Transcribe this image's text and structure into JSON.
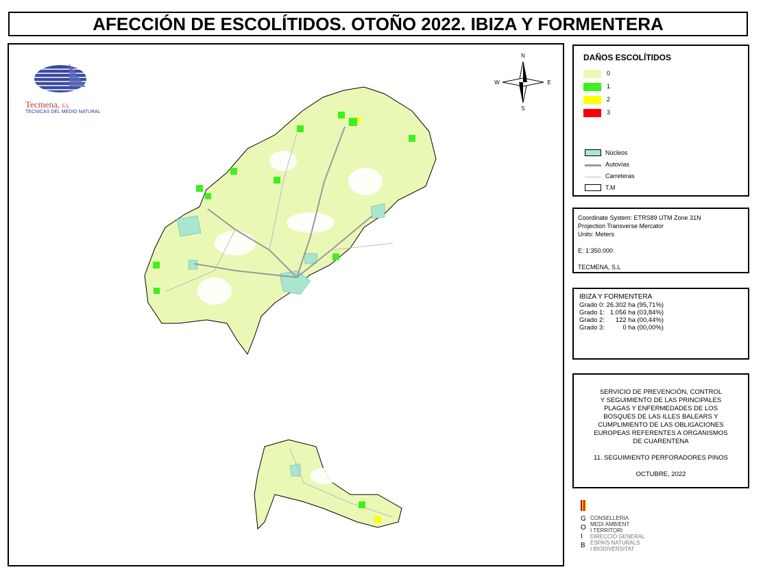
{
  "title": "AFECCIÓN DE ESCOLÍTIDOS. OTOÑO 2022. IBIZA Y FORMENTERA",
  "logo": {
    "name": "Tecmena,",
    "suffix": "S.L",
    "subtitle": "TECNICAS DEL MEDIO NATURAL"
  },
  "compass": {
    "n": "N",
    "s": "S",
    "e": "E",
    "w": "W"
  },
  "legend": {
    "title": "DAÑOS ESCOLÍTIDOS",
    "classes": [
      {
        "label": "0",
        "color": "#eaf8b6"
      },
      {
        "label": "1",
        "color": "#3ef01c"
      },
      {
        "label": "2",
        "color": "#ffff00"
      },
      {
        "label": "3",
        "color": "#ff0000"
      }
    ],
    "layers": [
      {
        "label": "Núcleos"
      },
      {
        "label": "Autovías"
      },
      {
        "label": "Carreteras"
      },
      {
        "label": "T.M"
      }
    ]
  },
  "info": {
    "lines": [
      "Coordinate System: ETRS89 UTM Zone 31N",
      "Projection Transverse Mercator",
      "Units: Meters",
      "E: 1:350.000",
      "TECMENA, S.L"
    ]
  },
  "stats": {
    "title": "IBIZA Y FORMENTERA",
    "rows": [
      "Grado 0: 26.302 ha (95,71%)",
      "Grado 1:   1.056 ha (03,84%)",
      "Grado 2:      122 ha (00,44%)",
      "Grado 3:          0 ha (00,00%)"
    ]
  },
  "project": {
    "lines": [
      "SERVICIO DE PREVENCIÓN, CONTROL",
      "Y SEGUIMIENTO DE LAS PRINCIPALES",
      "PLAGAS Y ENFERMEDADES DE LOS",
      "BOSQUES DE LAS ILLES BALEARS Y",
      "CUMPLIMIENTO DE LAS OBLIGACIONES",
      "EUROPEAS REFERENTES A ORGANISMOS",
      "DE CUARENTENA",
      "11. SEGUIMIENTO PERFORADORES PINOS",
      "OCTUBRE, 2022"
    ]
  },
  "agency": {
    "letters": [
      "G",
      "O",
      "I",
      "B"
    ],
    "lines": [
      "CONSELLERIA",
      "MEDI AMBIENT",
      "I TERRITORI",
      "DIRECCIÓ GENERAL",
      "ESPAIS NATURALS",
      "I BIODIVERSITAT"
    ]
  }
}
